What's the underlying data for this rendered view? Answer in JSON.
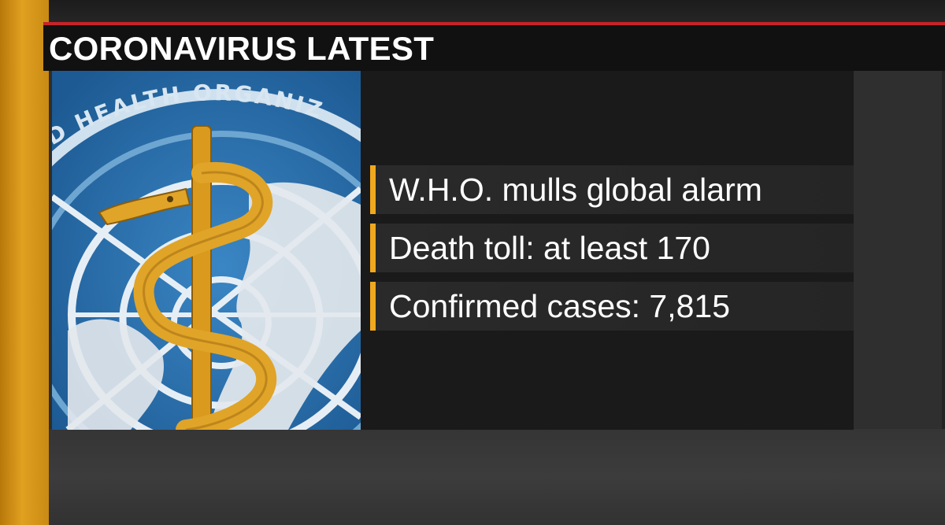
{
  "header": {
    "title": "CORONAVIRUS LATEST"
  },
  "image": {
    "emblem_text": "D HEALTH ORGANIZ"
  },
  "items": [
    {
      "label": "W.H.O. mulls global alarm"
    },
    {
      "label": "Death toll: at least 170"
    },
    {
      "label": "Confirmed cases: 7,815"
    }
  ],
  "colors": {
    "accent_orange": "#f0a81e",
    "accent_red": "#c8232a",
    "header_bg": "#111111",
    "emblem_blue": "#2a6eaa"
  }
}
